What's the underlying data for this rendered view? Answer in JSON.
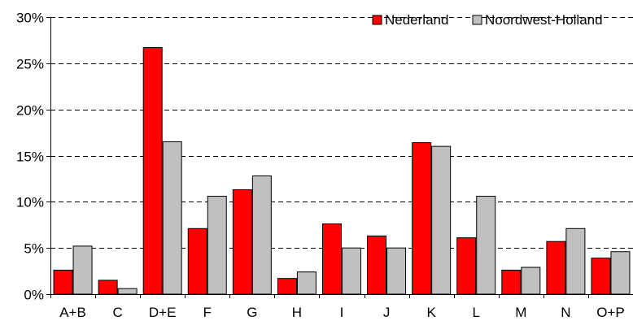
{
  "chart_data": {
    "type": "bar",
    "categories": [
      "A+B",
      "C",
      "D+E",
      "F",
      "G",
      "H",
      "I",
      "J",
      "K",
      "L",
      "M",
      "N",
      "O+P"
    ],
    "series": [
      {
        "name": "Nederland",
        "color": "#ff0000",
        "values": [
          2.6,
          1.5,
          26.7,
          7.1,
          11.3,
          1.7,
          7.6,
          6.3,
          16.4,
          6.1,
          2.6,
          5.7,
          3.9
        ]
      },
      {
        "name": "Noordwest-Holland",
        "color": "#c0c0c0",
        "values": [
          5.2,
          0.6,
          16.5,
          10.6,
          12.8,
          2.4,
          5.0,
          5.0,
          16.0,
          10.6,
          2.9,
          7.1,
          4.6
        ]
      }
    ],
    "yticks": [
      "0%",
      "5%",
      "10%",
      "15%",
      "20%",
      "25%",
      "30%"
    ],
    "ylim": [
      0,
      30
    ],
    "ytick_step": 5,
    "grid": "horizontal dashed",
    "legend_position": "top-right",
    "title": "",
    "xlabel": "",
    "ylabel": ""
  }
}
